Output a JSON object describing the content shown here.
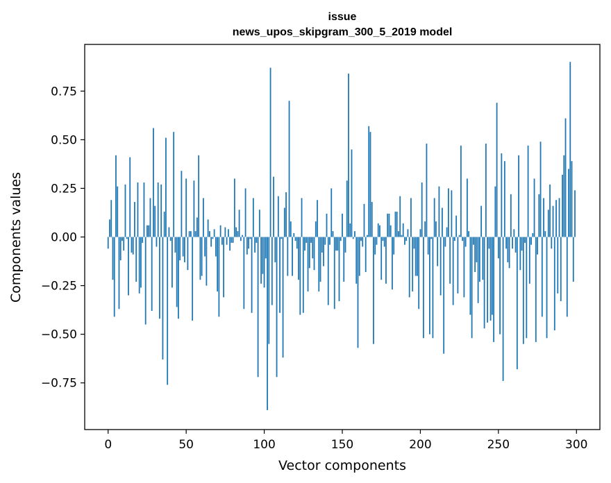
{
  "chart_data": {
    "type": "bar",
    "title_line1": "issue",
    "title_line2": "news_upos_skipgram_300_5_2019 model",
    "xlabel": "Vector components",
    "ylabel": "Components values",
    "xlim": [
      -15,
      315
    ],
    "ylim": [
      -0.99,
      0.99
    ],
    "xticks": [
      0,
      50,
      100,
      150,
      200,
      250,
      300
    ],
    "xtick_labels": [
      "0",
      "50",
      "100",
      "150",
      "200",
      "250",
      "300"
    ],
    "yticks": [
      -0.75,
      -0.5,
      -0.25,
      0.0,
      0.25,
      0.5,
      0.75
    ],
    "ytick_labels": [
      "−0.75",
      "−0.50",
      "−0.25",
      "0.00",
      "0.25",
      "0.50",
      "0.75"
    ],
    "bar_color": "#1f77b4",
    "values": [
      -0.06,
      0.09,
      0.19,
      -0.22,
      -0.41,
      0.42,
      0.26,
      -0.37,
      -0.12,
      -0.02,
      -0.07,
      0.27,
      -0.01,
      -0.3,
      0.41,
      -0.08,
      -0.09,
      0.18,
      -0.23,
      0.28,
      -0.29,
      -0.26,
      -0.03,
      0.28,
      -0.45,
      0.06,
      0.06,
      0.2,
      -0.38,
      0.56,
      0.16,
      -0.05,
      0.28,
      -0.42,
      0.27,
      -0.63,
      0.13,
      0.51,
      -0.76,
      0.05,
      -0.02,
      -0.26,
      0.54,
      -0.08,
      -0.36,
      -0.42,
      -0.12,
      0.34,
      -0.1,
      -0.13,
      0.3,
      -0.17,
      0.03,
      0.03,
      -0.43,
      0.29,
      0.03,
      0.1,
      0.42,
      -0.22,
      -0.2,
      0.2,
      -0.1,
      -0.25,
      0.09,
      0.03,
      -0.05,
      -0.01,
      0.04,
      -0.1,
      -0.28,
      -0.41,
      0.06,
      -0.04,
      -0.31,
      0.05,
      -0.04,
      0.04,
      -0.07,
      -0.03,
      -0.03,
      0.3,
      0.05,
      0.03,
      0.14,
      -0.02,
      0.01,
      -0.37,
      0.25,
      -0.09,
      -0.06,
      -0.01,
      -0.39,
      0.2,
      -0.08,
      -0.03,
      -0.72,
      0.14,
      -0.24,
      -0.19,
      -0.26,
      -0.11,
      -0.89,
      -0.55,
      0.87,
      -0.35,
      0.31,
      -0.13,
      -0.72,
      0.21,
      -0.39,
      -0.01,
      -0.62,
      0.15,
      0.23,
      -0.2,
      0.7,
      0.08,
      -0.2,
      0.02,
      -0.02,
      -0.06,
      -0.22,
      -0.4,
      0.2,
      -0.39,
      -0.07,
      -0.03,
      -0.28,
      -0.16,
      -0.03,
      -0.11,
      -0.17,
      0.08,
      0.19,
      -0.28,
      -0.23,
      -0.08,
      -0.15,
      -0.04,
      0.12,
      -0.35,
      -0.04,
      0.25,
      0.03,
      -0.37,
      -0.07,
      -0.07,
      -0.33,
      -0.02,
      0.12,
      -0.23,
      -0.08,
      0.29,
      0.84,
      0.07,
      0.45,
      -0.01,
      0.03,
      -0.24,
      -0.57,
      -0.2,
      -0.02,
      -0.05,
      0.17,
      -0.18,
      0.01,
      0.57,
      0.54,
      0.18,
      -0.55,
      -0.09,
      -0.04,
      0.07,
      0.06,
      -0.22,
      -0.02,
      -0.05,
      -0.24,
      0.12,
      0.12,
      0.06,
      -0.27,
      -0.09,
      0.13,
      0.13,
      0.03,
      0.21,
      0.01,
      0.07,
      -0.04,
      -0.02,
      0.04,
      -0.31,
      0.2,
      -0.28,
      -0.06,
      -0.2,
      -0.2,
      -0.37,
      0.04,
      0.28,
      -0.52,
      0.08,
      0.48,
      -0.09,
      -0.5,
      -0.01,
      -0.52,
      0.2,
      0.08,
      -0.15,
      0.26,
      -0.3,
      0.15,
      -0.6,
      -0.05,
      0.05,
      0.25,
      -0.24,
      0.24,
      -0.35,
      -0.02,
      0.11,
      -0.29,
      0.01,
      0.47,
      -0.02,
      -0.31,
      -0.05,
      0.3,
      0.03,
      -0.4,
      -0.52,
      -0.04,
      -0.18,
      -0.13,
      -0.34,
      -0.23,
      0.16,
      -0.22,
      -0.47,
      0.48,
      -0.44,
      -0.06,
      -0.43,
      -0.4,
      -0.54,
      0.26,
      0.69,
      -0.11,
      -0.5,
      0.43,
      -0.74,
      0.39,
      -0.06,
      -0.13,
      -0.16,
      0.22,
      -0.06,
      0.04,
      -0.08,
      -0.68,
      0.42,
      -0.17,
      -0.07,
      -0.55,
      -0.03,
      -0.52,
      0.47,
      -0.24,
      -0.04,
      0.02,
      0.3,
      -0.54,
      -0.09,
      0.22,
      0.49,
      -0.41,
      0.2,
      0.03,
      -0.52,
      0.14,
      0.27,
      -0.06,
      0.16,
      -0.48,
      0.19,
      -0.29,
      0.2,
      -0.33,
      0.32,
      0.42,
      0.61,
      -0.41,
      0.35,
      0.9,
      0.39,
      -0.23,
      0.24
    ]
  }
}
